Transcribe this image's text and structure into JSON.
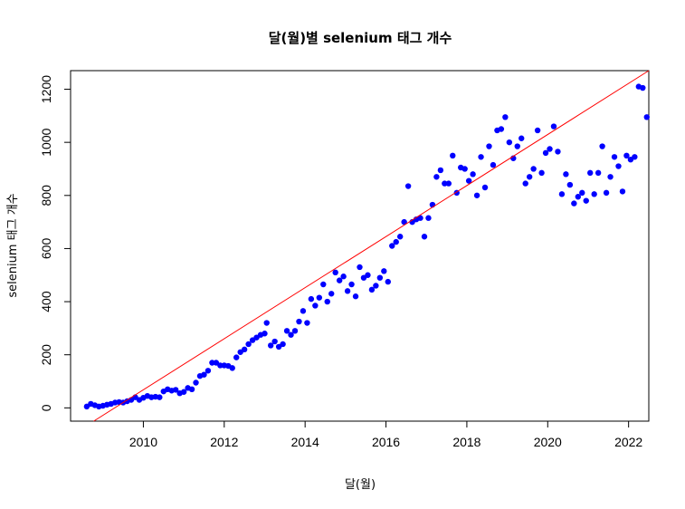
{
  "chart_data": {
    "type": "scatter",
    "title": "달(월)별 selenium 태그 개수",
    "xlabel": "달(월)",
    "ylabel": "selenium 태그 개수",
    "xlim": [
      2008.2,
      2022.5
    ],
    "ylim": [
      -50,
      1270
    ],
    "x_ticks": [
      2010,
      2012,
      2014,
      2016,
      2018,
      2020,
      2022
    ],
    "y_ticks": [
      0,
      200,
      400,
      600,
      800,
      1000,
      1200
    ],
    "point_color": "#0000ff",
    "fit_line_color": "#ff0000",
    "fit_line": {
      "x": [
        2008.2,
        2022.5
      ],
      "y": [
        -105,
        1270
      ]
    },
    "points": [
      [
        2008.6,
        5
      ],
      [
        2008.7,
        15
      ],
      [
        2008.8,
        10
      ],
      [
        2008.9,
        5
      ],
      [
        2009.0,
        8
      ],
      [
        2009.1,
        12
      ],
      [
        2009.2,
        15
      ],
      [
        2009.3,
        20
      ],
      [
        2009.4,
        22
      ],
      [
        2009.5,
        20
      ],
      [
        2009.6,
        25
      ],
      [
        2009.7,
        30
      ],
      [
        2009.8,
        40
      ],
      [
        2009.9,
        30
      ],
      [
        2010.0,
        38
      ],
      [
        2010.1,
        45
      ],
      [
        2010.2,
        40
      ],
      [
        2010.3,
        42
      ],
      [
        2010.4,
        40
      ],
      [
        2010.5,
        62
      ],
      [
        2010.6,
        70
      ],
      [
        2010.7,
        65
      ],
      [
        2010.8,
        68
      ],
      [
        2010.9,
        55
      ],
      [
        2011.0,
        60
      ],
      [
        2011.1,
        75
      ],
      [
        2011.2,
        70
      ],
      [
        2011.3,
        95
      ],
      [
        2011.4,
        120
      ],
      [
        2011.5,
        125
      ],
      [
        2011.6,
        140
      ],
      [
        2011.7,
        170
      ],
      [
        2011.8,
        170
      ],
      [
        2011.9,
        160
      ],
      [
        2012.0,
        160
      ],
      [
        2012.1,
        158
      ],
      [
        2012.2,
        150
      ],
      [
        2012.3,
        190
      ],
      [
        2012.4,
        210
      ],
      [
        2012.5,
        220
      ],
      [
        2012.6,
        240
      ],
      [
        2012.7,
        255
      ],
      [
        2012.8,
        265
      ],
      [
        2012.9,
        275
      ],
      [
        2013.0,
        280
      ],
      [
        2013.05,
        320
      ],
      [
        2013.15,
        235
      ],
      [
        2013.25,
        250
      ],
      [
        2013.35,
        230
      ],
      [
        2013.45,
        240
      ],
      [
        2013.55,
        290
      ],
      [
        2013.65,
        275
      ],
      [
        2013.75,
        290
      ],
      [
        2013.85,
        325
      ],
      [
        2013.95,
        365
      ],
      [
        2014.05,
        320
      ],
      [
        2014.15,
        410
      ],
      [
        2014.25,
        385
      ],
      [
        2014.35,
        415
      ],
      [
        2014.45,
        465
      ],
      [
        2014.55,
        400
      ],
      [
        2014.65,
        430
      ],
      [
        2014.75,
        510
      ],
      [
        2014.85,
        480
      ],
      [
        2014.95,
        495
      ],
      [
        2015.05,
        440
      ],
      [
        2015.15,
        465
      ],
      [
        2015.25,
        420
      ],
      [
        2015.35,
        530
      ],
      [
        2015.45,
        490
      ],
      [
        2015.55,
        500
      ],
      [
        2015.65,
        445
      ],
      [
        2015.75,
        460
      ],
      [
        2015.85,
        490
      ],
      [
        2015.95,
        515
      ],
      [
        2016.05,
        475
      ],
      [
        2016.15,
        610
      ],
      [
        2016.25,
        625
      ],
      [
        2016.35,
        645
      ],
      [
        2016.45,
        700
      ],
      [
        2016.55,
        835
      ],
      [
        2016.65,
        700
      ],
      [
        2016.75,
        710
      ],
      [
        2016.85,
        715
      ],
      [
        2016.95,
        645
      ],
      [
        2017.05,
        715
      ],
      [
        2017.15,
        765
      ],
      [
        2017.25,
        870
      ],
      [
        2017.35,
        895
      ],
      [
        2017.45,
        845
      ],
      [
        2017.55,
        845
      ],
      [
        2017.65,
        950
      ],
      [
        2017.75,
        810
      ],
      [
        2017.85,
        905
      ],
      [
        2017.95,
        900
      ],
      [
        2018.05,
        855
      ],
      [
        2018.15,
        880
      ],
      [
        2018.25,
        800
      ],
      [
        2018.35,
        945
      ],
      [
        2018.45,
        830
      ],
      [
        2018.55,
        985
      ],
      [
        2018.65,
        915
      ],
      [
        2018.75,
        1045
      ],
      [
        2018.85,
        1050
      ],
      [
        2018.95,
        1095
      ],
      [
        2019.05,
        1000
      ],
      [
        2019.15,
        940
      ],
      [
        2019.25,
        985
      ],
      [
        2019.35,
        1015
      ],
      [
        2019.45,
        845
      ],
      [
        2019.55,
        870
      ],
      [
        2019.65,
        900
      ],
      [
        2019.75,
        1045
      ],
      [
        2019.85,
        885
      ],
      [
        2019.95,
        960
      ],
      [
        2020.05,
        975
      ],
      [
        2020.15,
        1060
      ],
      [
        2020.25,
        965
      ],
      [
        2020.35,
        805
      ],
      [
        2020.45,
        880
      ],
      [
        2020.55,
        840
      ],
      [
        2020.65,
        770
      ],
      [
        2020.75,
        795
      ],
      [
        2020.85,
        810
      ],
      [
        2020.95,
        780
      ],
      [
        2021.05,
        885
      ],
      [
        2021.15,
        805
      ],
      [
        2021.25,
        885
      ],
      [
        2021.35,
        985
      ],
      [
        2021.45,
        810
      ],
      [
        2021.55,
        870
      ],
      [
        2021.65,
        945
      ],
      [
        2021.75,
        910
      ],
      [
        2021.85,
        815
      ],
      [
        2021.95,
        950
      ],
      [
        2022.05,
        935
      ],
      [
        2022.15,
        945
      ],
      [
        2022.25,
        1210
      ],
      [
        2022.35,
        1205
      ],
      [
        2022.45,
        1095
      ]
    ]
  }
}
